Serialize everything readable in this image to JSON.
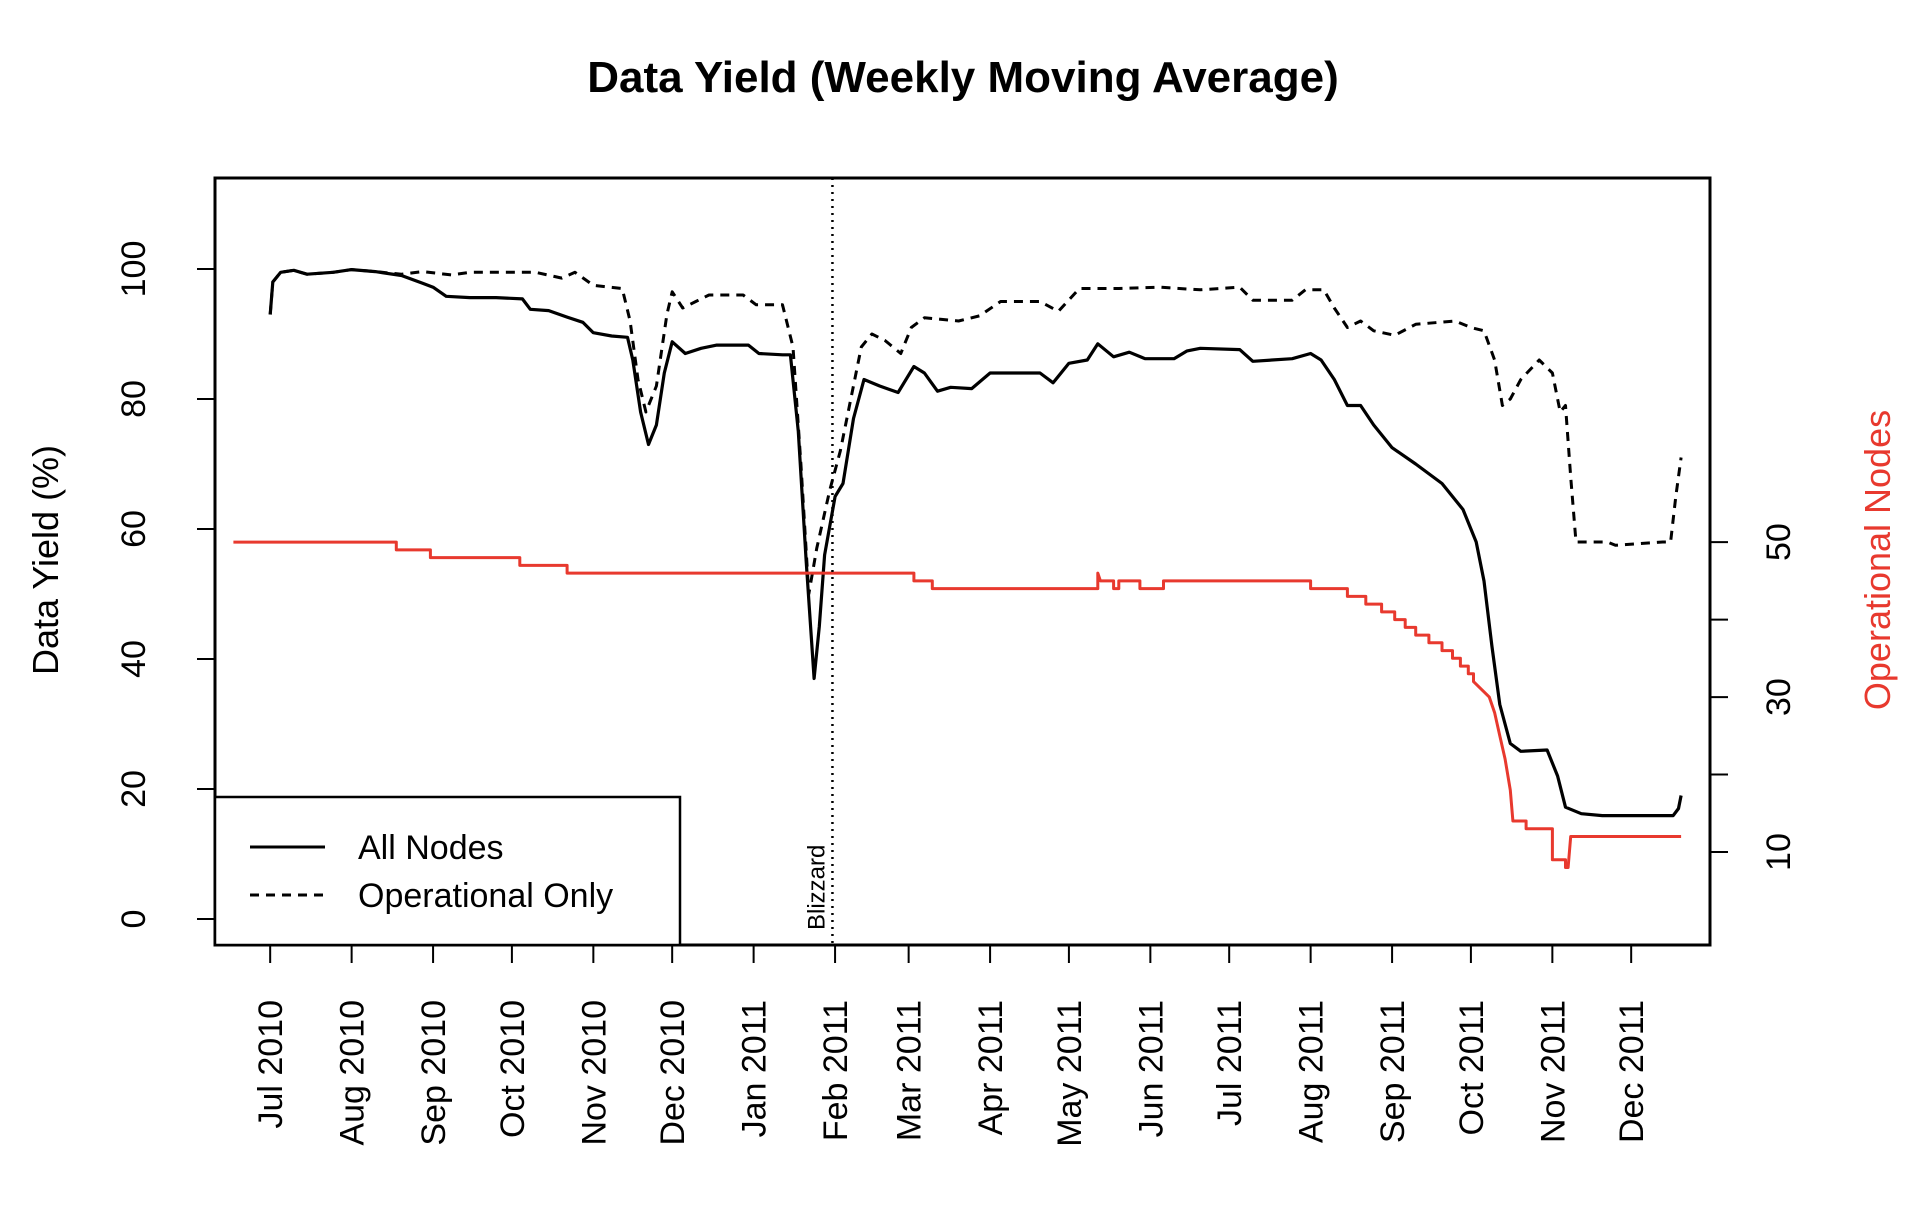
{
  "chart_data": {
    "type": "line",
    "title": "Data Yield (Weekly Moving Average)",
    "ylabel": "Data Yield (%)",
    "y2label": "Operational Nodes",
    "ylim": [
      -4,
      114
    ],
    "y2lim": [
      -2,
      97
    ],
    "yticks": [
      0,
      20,
      40,
      60,
      80,
      100
    ],
    "y2ticks": [
      10,
      20,
      30,
      40,
      50
    ],
    "y2tick_labels": [
      "10",
      "",
      "30",
      "",
      "50"
    ],
    "xlim": [
      "2010-06-10",
      "2011-12-31"
    ],
    "x_ticks": [
      {
        "date": "2010-07-01",
        "label": "Jul 2010"
      },
      {
        "date": "2010-08-01",
        "label": "Aug 2010"
      },
      {
        "date": "2010-09-01",
        "label": "Sep 2010"
      },
      {
        "date": "2010-10-01",
        "label": "Oct 2010"
      },
      {
        "date": "2010-11-01",
        "label": "Nov 2010"
      },
      {
        "date": "2010-12-01",
        "label": "Dec 2010"
      },
      {
        "date": "2011-01-01",
        "label": "Jan 2011"
      },
      {
        "date": "2011-02-01",
        "label": "Feb 2011"
      },
      {
        "date": "2011-03-01",
        "label": "Mar 2011"
      },
      {
        "date": "2011-04-01",
        "label": "Apr 2011"
      },
      {
        "date": "2011-05-01",
        "label": "May 2011"
      },
      {
        "date": "2011-06-01",
        "label": "Jun 2011"
      },
      {
        "date": "2011-07-01",
        "label": "Jul 2011"
      },
      {
        "date": "2011-08-01",
        "label": "Aug 2011"
      },
      {
        "date": "2011-09-01",
        "label": "Sep 2011"
      },
      {
        "date": "2011-10-01",
        "label": "Oct 2011"
      },
      {
        "date": "2011-11-01",
        "label": "Nov 2011"
      },
      {
        "date": "2011-12-01",
        "label": "Dec 2011"
      }
    ],
    "annotation": {
      "date": "2011-01-31",
      "label": "Blizzard"
    },
    "legend": {
      "position": "bottom-left",
      "entries": [
        {
          "label": "All Nodes",
          "style": "solid"
        },
        {
          "label": "Operational Only",
          "style": "dashed"
        }
      ]
    },
    "grid": false,
    "colors": {
      "yield": "#000000",
      "nodes": "#e8392e"
    },
    "series": [
      {
        "name": "All Nodes",
        "axis": "left",
        "points": [
          [
            "2010-07-01",
            93
          ],
          [
            "2010-07-02",
            98
          ],
          [
            "2010-07-05",
            99.5
          ],
          [
            "2010-07-10",
            99.8
          ],
          [
            "2010-07-15",
            99.2
          ],
          [
            "2010-07-25",
            99.5
          ],
          [
            "2010-08-01",
            99.9
          ],
          [
            "2010-08-10",
            99.6
          ],
          [
            "2010-08-20",
            99
          ],
          [
            "2010-08-28",
            97.8
          ],
          [
            "2010-09-01",
            97.2
          ],
          [
            "2010-09-06",
            95.8
          ],
          [
            "2010-09-15",
            95.6
          ],
          [
            "2010-09-25",
            95.6
          ],
          [
            "2010-10-05",
            95.4
          ],
          [
            "2010-10-08",
            93.8
          ],
          [
            "2010-10-15",
            93.6
          ],
          [
            "2010-10-22",
            92.6
          ],
          [
            "2010-10-28",
            91.8
          ],
          [
            "2010-11-01",
            90.2
          ],
          [
            "2010-11-08",
            89.7
          ],
          [
            "2010-11-14",
            89.5
          ],
          [
            "2010-11-16",
            86
          ],
          [
            "2010-11-19",
            78
          ],
          [
            "2010-11-22",
            73
          ],
          [
            "2010-11-25",
            76
          ],
          [
            "2010-11-28",
            84
          ],
          [
            "2010-12-01",
            88.8
          ],
          [
            "2010-12-06",
            87
          ],
          [
            "2010-12-12",
            87.8
          ],
          [
            "2010-12-18",
            88.3
          ],
          [
            "2010-12-30",
            88.3
          ],
          [
            "2011-01-03",
            87
          ],
          [
            "2011-01-12",
            86.8
          ],
          [
            "2011-01-15",
            86.8
          ],
          [
            "2011-01-18",
            75
          ],
          [
            "2011-01-21",
            55
          ],
          [
            "2011-01-24",
            37
          ],
          [
            "2011-01-26",
            45
          ],
          [
            "2011-01-28",
            56
          ],
          [
            "2011-02-01",
            65
          ],
          [
            "2011-02-04",
            67
          ],
          [
            "2011-02-08",
            77
          ],
          [
            "2011-02-12",
            83
          ],
          [
            "2011-02-18",
            82
          ],
          [
            "2011-02-25",
            81
          ],
          [
            "2011-03-03",
            85
          ],
          [
            "2011-03-07",
            84
          ],
          [
            "2011-03-12",
            81.2
          ],
          [
            "2011-03-17",
            81.8
          ],
          [
            "2011-03-25",
            81.6
          ],
          [
            "2011-04-01",
            84
          ],
          [
            "2011-04-20",
            84
          ],
          [
            "2011-04-25",
            82.5
          ],
          [
            "2011-05-01",
            85.5
          ],
          [
            "2011-05-08",
            86
          ],
          [
            "2011-05-12",
            88.5
          ],
          [
            "2011-05-18",
            86.5
          ],
          [
            "2011-05-24",
            87.2
          ],
          [
            "2011-05-30",
            86.2
          ],
          [
            "2011-06-10",
            86.2
          ],
          [
            "2011-06-15",
            87.4
          ],
          [
            "2011-06-20",
            87.8
          ],
          [
            "2011-07-05",
            87.6
          ],
          [
            "2011-07-10",
            85.8
          ],
          [
            "2011-07-25",
            86.2
          ],
          [
            "2011-08-01",
            87
          ],
          [
            "2011-08-05",
            86
          ],
          [
            "2011-08-10",
            83
          ],
          [
            "2011-08-15",
            79
          ],
          [
            "2011-08-20",
            79
          ],
          [
            "2011-08-25",
            76
          ],
          [
            "2011-09-01",
            72.5
          ],
          [
            "2011-09-10",
            70
          ],
          [
            "2011-09-20",
            67
          ],
          [
            "2011-09-28",
            63
          ],
          [
            "2011-10-03",
            58
          ],
          [
            "2011-10-06",
            52
          ],
          [
            "2011-10-09",
            42
          ],
          [
            "2011-10-12",
            33
          ],
          [
            "2011-10-16",
            27
          ],
          [
            "2011-10-20",
            25.8
          ],
          [
            "2011-10-30",
            26
          ],
          [
            "2011-11-03",
            22
          ],
          [
            "2011-11-06",
            17.2
          ],
          [
            "2011-11-12",
            16.2
          ],
          [
            "2011-11-20",
            15.9
          ],
          [
            "2011-12-17",
            15.9
          ],
          [
            "2011-12-19",
            17
          ],
          [
            "2011-12-20",
            19
          ]
        ]
      },
      {
        "name": "Operational Only",
        "axis": "left",
        "points": [
          [
            "2010-07-01",
            93
          ],
          [
            "2010-07-02",
            98
          ],
          [
            "2010-07-05",
            99.5
          ],
          [
            "2010-07-10",
            99.8
          ],
          [
            "2010-07-15",
            99.2
          ],
          [
            "2010-07-25",
            99.5
          ],
          [
            "2010-08-01",
            99.9
          ],
          [
            "2010-08-10",
            99.6
          ],
          [
            "2010-08-20",
            99.2
          ],
          [
            "2010-08-28",
            99.6
          ],
          [
            "2010-09-08",
            99.1
          ],
          [
            "2010-09-15",
            99.5
          ],
          [
            "2010-10-10",
            99.5
          ],
          [
            "2010-10-20",
            98.6
          ],
          [
            "2010-10-25",
            99.5
          ],
          [
            "2010-11-01",
            97.5
          ],
          [
            "2010-11-12",
            97
          ],
          [
            "2010-11-15",
            92
          ],
          [
            "2010-11-18",
            83
          ],
          [
            "2010-11-21",
            78
          ],
          [
            "2010-11-25",
            82
          ],
          [
            "2010-11-29",
            93
          ],
          [
            "2010-12-01",
            96.5
          ],
          [
            "2010-12-05",
            94
          ],
          [
            "2010-12-10",
            95
          ],
          [
            "2010-12-15",
            96
          ],
          [
            "2010-12-28",
            96
          ],
          [
            "2011-01-02",
            94.5
          ],
          [
            "2011-01-12",
            94.5
          ],
          [
            "2011-01-16",
            88
          ],
          [
            "2011-01-19",
            70
          ],
          [
            "2011-01-22",
            50
          ],
          [
            "2011-01-25",
            57
          ],
          [
            "2011-01-30",
            66
          ],
          [
            "2011-02-03",
            72
          ],
          [
            "2011-02-07",
            80
          ],
          [
            "2011-02-11",
            88
          ],
          [
            "2011-02-15",
            90
          ],
          [
            "2011-02-20",
            89
          ],
          [
            "2011-02-26",
            87
          ],
          [
            "2011-03-02",
            91
          ],
          [
            "2011-03-07",
            92.5
          ],
          [
            "2011-03-20",
            92
          ],
          [
            "2011-03-28",
            92.8
          ],
          [
            "2011-04-05",
            95
          ],
          [
            "2011-04-20",
            95
          ],
          [
            "2011-04-27",
            93.5
          ],
          [
            "2011-05-05",
            97
          ],
          [
            "2011-05-20",
            97
          ],
          [
            "2011-06-05",
            97.2
          ],
          [
            "2011-06-12",
            97
          ],
          [
            "2011-06-20",
            96.8
          ],
          [
            "2011-07-05",
            97.2
          ],
          [
            "2011-07-10",
            95.2
          ],
          [
            "2011-07-25",
            95.2
          ],
          [
            "2011-07-30",
            96.8
          ],
          [
            "2011-08-06",
            96.8
          ],
          [
            "2011-08-10",
            94
          ],
          [
            "2011-08-15",
            91
          ],
          [
            "2011-08-20",
            92
          ],
          [
            "2011-08-25",
            90.5
          ],
          [
            "2011-09-02",
            89.8
          ],
          [
            "2011-09-10",
            91.5
          ],
          [
            "2011-09-25",
            92
          ],
          [
            "2011-10-01",
            91
          ],
          [
            "2011-10-06",
            90.5
          ],
          [
            "2011-10-10",
            86
          ],
          [
            "2011-10-13",
            79
          ],
          [
            "2011-10-16",
            80
          ],
          [
            "2011-10-20",
            83
          ],
          [
            "2011-10-27",
            86
          ],
          [
            "2011-11-01",
            84
          ],
          [
            "2011-11-04",
            78
          ],
          [
            "2011-11-06",
            79
          ],
          [
            "2011-11-08",
            68
          ],
          [
            "2011-11-10",
            58
          ],
          [
            "2011-11-22",
            58
          ],
          [
            "2011-11-25",
            57.5
          ],
          [
            "2011-12-13",
            58
          ],
          [
            "2011-12-16",
            58
          ],
          [
            "2011-12-18",
            65
          ],
          [
            "2011-12-20",
            71
          ]
        ]
      },
      {
        "name": "Operational Nodes",
        "axis": "right",
        "points": [
          [
            "2010-06-17",
            50
          ],
          [
            "2010-08-18",
            50
          ],
          [
            "2010-08-18",
            49
          ],
          [
            "2010-08-31",
            49
          ],
          [
            "2010-08-31",
            48
          ],
          [
            "2010-10-04",
            48
          ],
          [
            "2010-10-04",
            47
          ],
          [
            "2010-10-22",
            47
          ],
          [
            "2010-10-22",
            46
          ],
          [
            "2011-03-03",
            46
          ],
          [
            "2011-03-03",
            45
          ],
          [
            "2011-03-10",
            45
          ],
          [
            "2011-03-10",
            44
          ],
          [
            "2011-05-12",
            44
          ],
          [
            "2011-05-12",
            46
          ],
          [
            "2011-05-13",
            45
          ],
          [
            "2011-05-18",
            45
          ],
          [
            "2011-05-18",
            44
          ],
          [
            "2011-05-20",
            44
          ],
          [
            "2011-05-20",
            45
          ],
          [
            "2011-05-28",
            45
          ],
          [
            "2011-05-28",
            44
          ],
          [
            "2011-06-06",
            44
          ],
          [
            "2011-06-06",
            45
          ],
          [
            "2011-08-01",
            45
          ],
          [
            "2011-08-01",
            44
          ],
          [
            "2011-08-15",
            44
          ],
          [
            "2011-08-15",
            43
          ],
          [
            "2011-08-22",
            43
          ],
          [
            "2011-08-22",
            42
          ],
          [
            "2011-08-28",
            42
          ],
          [
            "2011-08-28",
            41
          ],
          [
            "2011-09-02",
            41
          ],
          [
            "2011-09-02",
            40
          ],
          [
            "2011-09-06",
            40
          ],
          [
            "2011-09-06",
            39
          ],
          [
            "2011-09-10",
            39
          ],
          [
            "2011-09-10",
            38
          ],
          [
            "2011-09-15",
            38
          ],
          [
            "2011-09-15",
            37
          ],
          [
            "2011-09-20",
            37
          ],
          [
            "2011-09-20",
            36
          ],
          [
            "2011-09-24",
            36
          ],
          [
            "2011-09-24",
            35
          ],
          [
            "2011-09-27",
            35
          ],
          [
            "2011-09-27",
            34
          ],
          [
            "2011-09-30",
            34
          ],
          [
            "2011-09-30",
            33
          ],
          [
            "2011-10-02",
            33
          ],
          [
            "2011-10-02",
            32
          ],
          [
            "2011-10-05",
            31
          ],
          [
            "2011-10-08",
            30
          ],
          [
            "2011-10-10",
            28
          ],
          [
            "2011-10-12",
            25
          ],
          [
            "2011-10-14",
            22
          ],
          [
            "2011-10-16",
            18
          ],
          [
            "2011-10-17",
            14
          ],
          [
            "2011-10-22",
            14
          ],
          [
            "2011-10-22",
            13
          ],
          [
            "2011-11-01",
            13
          ],
          [
            "2011-11-01",
            9
          ],
          [
            "2011-11-06",
            9
          ],
          [
            "2011-11-06",
            8
          ],
          [
            "2011-11-07",
            8
          ],
          [
            "2011-11-08",
            12
          ],
          [
            "2011-12-20",
            12
          ]
        ]
      }
    ]
  }
}
